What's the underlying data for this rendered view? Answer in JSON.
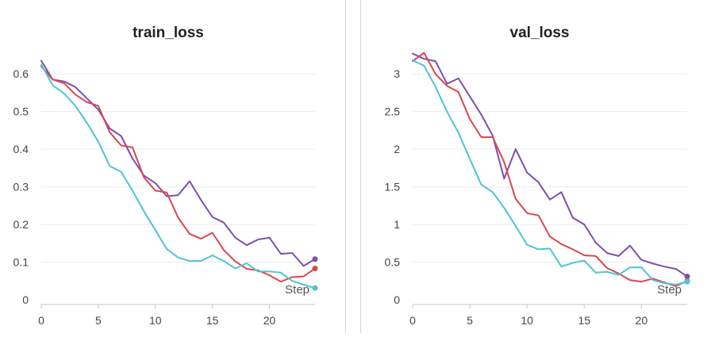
{
  "chart_data": [
    {
      "type": "line",
      "title": "train_loss",
      "xlabel": "Step",
      "ylabel": "",
      "xlim": [
        0,
        24
      ],
      "ylim": [
        0,
        0.67
      ],
      "x_ticks": [
        "0",
        "5",
        "10",
        "15",
        "20"
      ],
      "y_ticks": [
        "0",
        "0.1",
        "0.2",
        "0.3",
        "0.4",
        "0.5",
        "0.6"
      ],
      "grid": true,
      "x": [
        0,
        1,
        2,
        3,
        4,
        5,
        6,
        7,
        8,
        9,
        10,
        11,
        12,
        13,
        14,
        15,
        16,
        17,
        18,
        19,
        20,
        21,
        22,
        23,
        24
      ],
      "series": [
        {
          "color": "#7b4fae",
          "values": [
            0.635,
            0.585,
            0.58,
            0.565,
            0.535,
            0.505,
            0.455,
            0.435,
            0.375,
            0.33,
            0.31,
            0.275,
            0.278,
            0.315,
            0.265,
            0.22,
            0.205,
            0.165,
            0.145,
            0.16,
            0.165,
            0.122,
            0.124,
            0.09,
            0.108
          ]
        },
        {
          "color": "#d9474e",
          "values": [
            0.62,
            0.585,
            0.575,
            0.545,
            0.525,
            0.515,
            0.445,
            0.41,
            0.405,
            0.325,
            0.29,
            0.285,
            0.218,
            0.175,
            0.162,
            0.178,
            0.132,
            0.102,
            0.082,
            0.078,
            0.065,
            0.048,
            0.06,
            0.062,
            0.083
          ]
        },
        {
          "color": "#4ec4d4",
          "values": [
            0.625,
            0.57,
            0.548,
            0.515,
            0.47,
            0.42,
            0.355,
            0.34,
            0.29,
            0.235,
            0.185,
            0.135,
            0.112,
            0.103,
            0.103,
            0.118,
            0.103,
            0.083,
            0.097,
            0.075,
            0.075,
            0.072,
            0.05,
            0.04,
            0.031
          ]
        }
      ]
    },
    {
      "type": "line",
      "title": "val_loss",
      "xlabel": "Step",
      "ylabel": "",
      "xlim": [
        0,
        24
      ],
      "ylim": [
        0,
        3.35
      ],
      "x_ticks": [
        "0",
        "5",
        "10",
        "15",
        "20"
      ],
      "y_ticks": [
        "0",
        "0.5",
        "1",
        "1.5",
        "2",
        "2.5",
        "3"
      ],
      "grid": true,
      "x": [
        0,
        1,
        2,
        3,
        4,
        5,
        6,
        7,
        8,
        9,
        10,
        11,
        12,
        13,
        14,
        15,
        16,
        17,
        18,
        19,
        20,
        21,
        22,
        23,
        24
      ],
      "series": [
        {
          "color": "#7b4fae",
          "values": [
            3.27,
            3.2,
            3.17,
            2.87,
            2.94,
            2.7,
            2.46,
            2.18,
            1.61,
            2.0,
            1.69,
            1.56,
            1.33,
            1.43,
            1.09,
            1.0,
            0.76,
            0.62,
            0.58,
            0.72,
            0.53,
            0.48,
            0.44,
            0.41,
            0.31
          ]
        },
        {
          "color": "#d9474e",
          "values": [
            3.17,
            3.28,
            3.0,
            2.84,
            2.76,
            2.4,
            2.16,
            2.16,
            1.83,
            1.34,
            1.15,
            1.12,
            0.84,
            0.74,
            0.67,
            0.59,
            0.58,
            0.42,
            0.35,
            0.26,
            0.24,
            0.28,
            0.23,
            0.18,
            0.25
          ]
        },
        {
          "color": "#4ec4d4",
          "values": [
            3.18,
            3.11,
            2.83,
            2.5,
            2.22,
            1.87,
            1.53,
            1.43,
            1.22,
            0.98,
            0.73,
            0.67,
            0.68,
            0.44,
            0.49,
            0.52,
            0.36,
            0.37,
            0.33,
            0.43,
            0.43,
            0.26,
            0.22,
            0.2,
            0.24
          ]
        }
      ]
    }
  ]
}
